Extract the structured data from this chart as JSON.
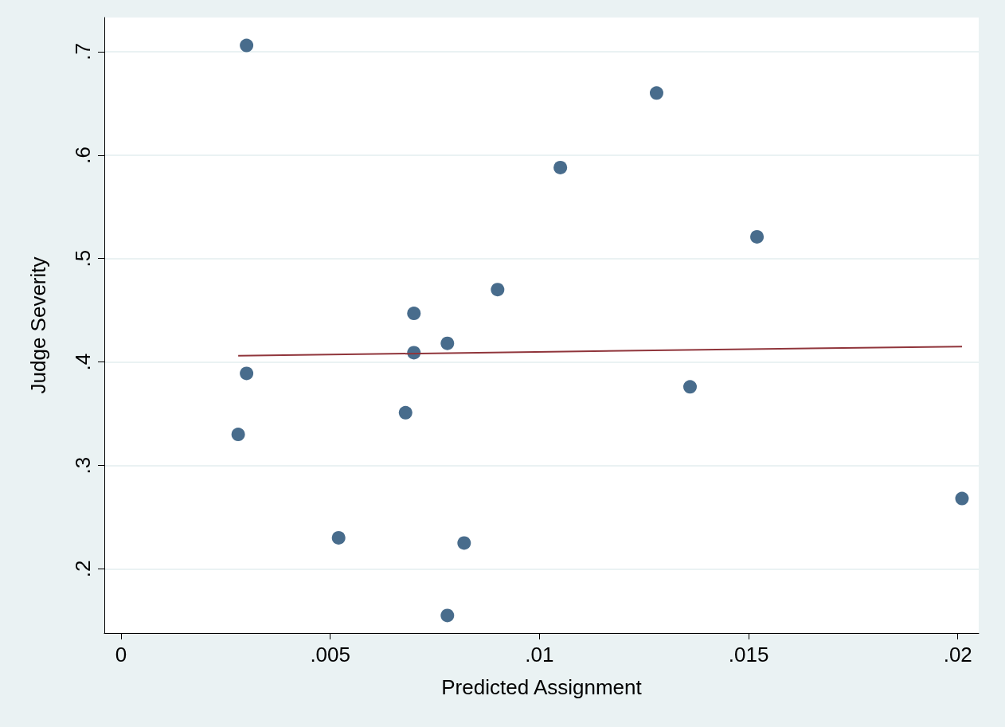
{
  "chart_data": {
    "type": "scatter",
    "xlabel": "Predicted Assignment",
    "ylabel": "Judge Severity",
    "xlim": [
      -0.0004,
      0.0205
    ],
    "ylim": [
      0.138,
      0.733
    ],
    "xticks": [
      0,
      {
        "value": 0.005,
        "label": ".005"
      },
      {
        "value": 0.01,
        "label": ".01"
      },
      {
        "value": 0.015,
        "label": ".015"
      },
      {
        "value": 0.02,
        "label": ".02"
      }
    ],
    "yticks": [
      {
        "value": 0.2,
        "label": ".2"
      },
      {
        "value": 0.3,
        "label": ".3"
      },
      {
        "value": 0.4,
        "label": ".4"
      },
      {
        "value": 0.5,
        "label": ".5"
      },
      {
        "value": 0.6,
        "label": ".6"
      },
      {
        "value": 0.7,
        "label": ".7"
      }
    ],
    "grid": "y",
    "marker": "circle",
    "series": [
      {
        "color": "#1a476f",
        "x": [
          0.003,
          0.0128,
          0.0105,
          0.0152,
          0.009,
          0.007,
          0.0078,
          0.007,
          0.003,
          0.0136,
          0.0068,
          0.0028,
          0.0201,
          0.0052,
          0.0082,
          0.0078
        ],
        "values": [
          0.706,
          0.66,
          0.588,
          0.521,
          0.47,
          0.447,
          0.418,
          0.409,
          0.389,
          0.376,
          0.351,
          0.33,
          0.268,
          0.23,
          0.225,
          0.155
        ]
      },
      {
        "type": "line",
        "color": "#90353b",
        "marker": "none",
        "line_style": "solid",
        "x": [
          0.0028,
          0.0201
        ],
        "values": [
          0.406,
          0.415
        ]
      }
    ]
  }
}
